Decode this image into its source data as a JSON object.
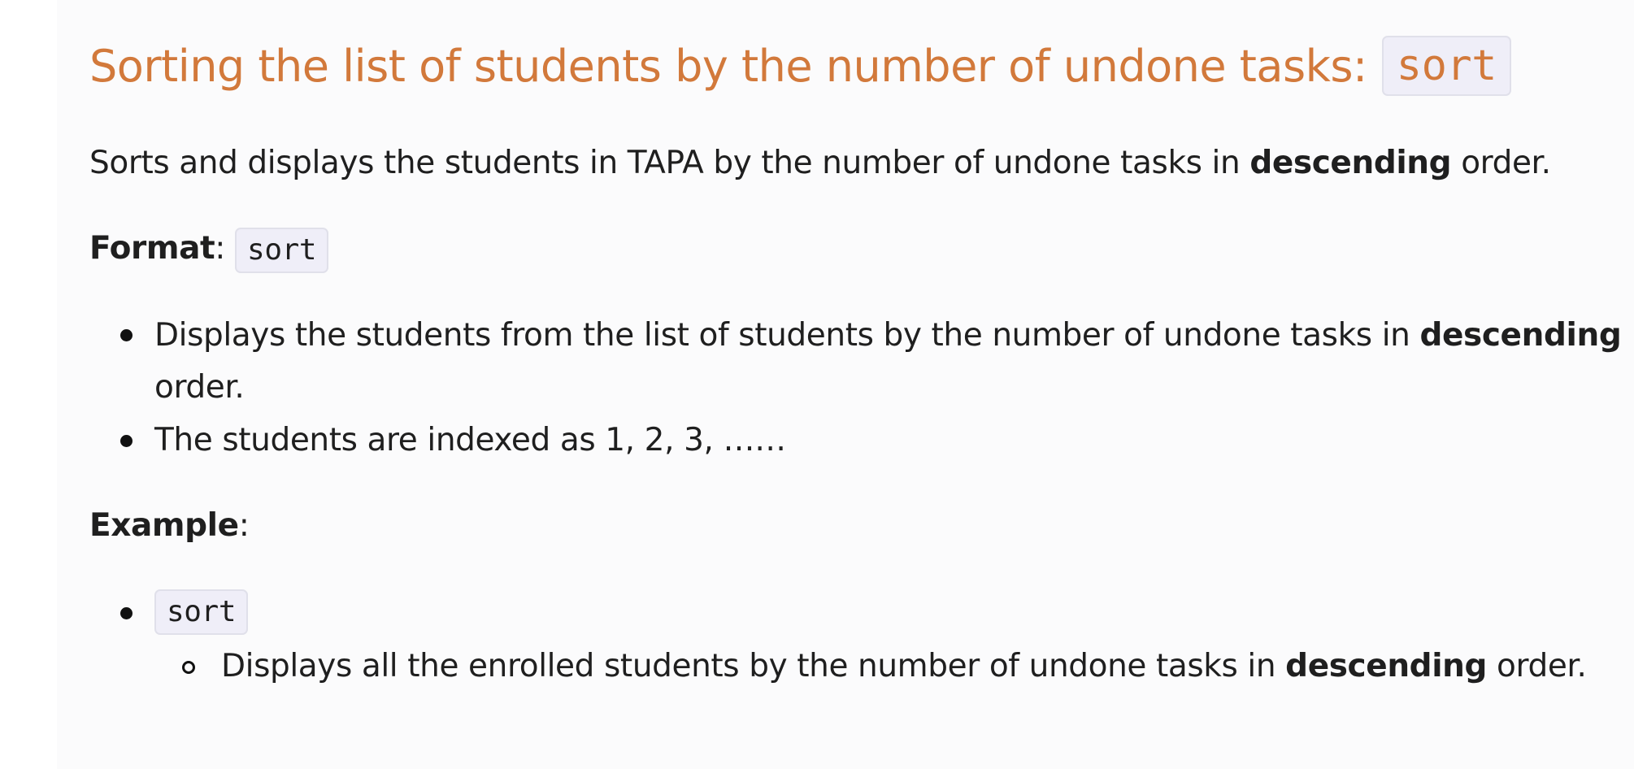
{
  "heading": {
    "text": "Sorting the list of students by the number of undone tasks:",
    "code": "sort"
  },
  "intro": {
    "before": "Sorts and displays the students in TAPA by the number of undone tasks in ",
    "bold": "descending",
    "after": " order."
  },
  "format": {
    "label": "Format",
    "colon": ":",
    "code": "sort",
    "bullets": [
      {
        "before": "Displays the students from the list of students by the number of undone tasks in ",
        "bold": "descending",
        "wrap": "order."
      },
      {
        "text": "The students are indexed as 1, 2, 3, ……"
      }
    ]
  },
  "example": {
    "label": "Example",
    "colon": ":",
    "code": "sort",
    "sub_item": {
      "before": "Displays all the enrolled students by the number of undone tasks in ",
      "bold": "descending",
      "after": " order."
    }
  }
}
